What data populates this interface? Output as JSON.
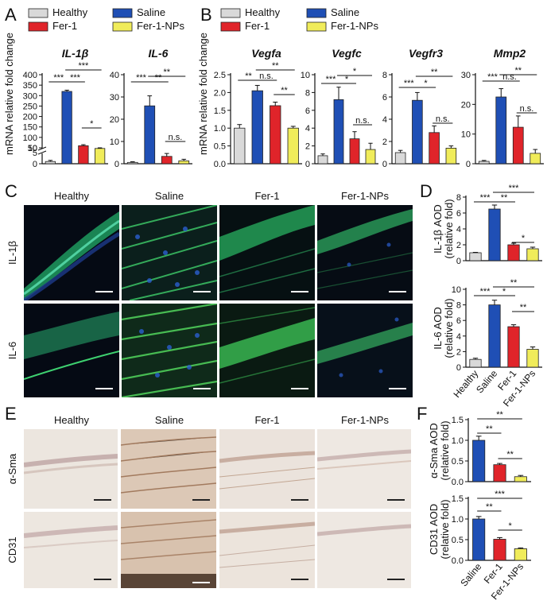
{
  "panel_letters": [
    "A",
    "B",
    "C",
    "D",
    "E",
    "F"
  ],
  "colors": {
    "Healthy": "#d9d9d9",
    "Saline": "#1f4fb5",
    "Fer-1": "#e0242a",
    "Fer-1-NPs": "#f0ec5a"
  },
  "legend": {
    "items": [
      "Healthy",
      "Saline",
      "Fer-1",
      "Fer-1-NPs"
    ]
  },
  "microscopy": {
    "columns": [
      "Healthy",
      "Saline",
      "Fer-1",
      "Fer-1-NPs"
    ],
    "fluorescence_rows": [
      "IL-1β",
      "IL-6"
    ],
    "ihc_rows": [
      "α-Sma",
      "CD31"
    ]
  },
  "chart_data": [
    {
      "id": "A1",
      "type": "bar",
      "title": "IL-1β",
      "ylabel": "mRNA relative fold change",
      "categories": [
        "Healthy",
        "Saline",
        "Fer-1",
        "Fer-1-NPs"
      ],
      "values": [
        1,
        320,
        60,
        47
      ],
      "errors": [
        0.5,
        6,
        5,
        3
      ],
      "y_break": true,
      "ticks": [
        "0",
        "5",
        "10",
        "50",
        "100",
        "150",
        "200",
        "250",
        "300",
        "350",
        "400"
      ],
      "significance": [
        "***",
        "***",
        "***",
        "*"
      ]
    },
    {
      "id": "A2",
      "type": "bar",
      "title": "IL-6",
      "categories": [
        "Healthy",
        "Saline",
        "Fer-1",
        "Fer-1-NPs"
      ],
      "values": [
        0.6,
        26,
        3.3,
        1.3
      ],
      "errors": [
        0.3,
        4.5,
        1.3,
        0.7
      ],
      "ylim": [
        0,
        40
      ],
      "ticks": [
        "0",
        "10",
        "20",
        "30",
        "40"
      ],
      "significance": [
        "***",
        "**",
        "**",
        "n.s."
      ]
    },
    {
      "id": "B1",
      "type": "bar",
      "title": "Vegfa",
      "ylabel": "mRNA relative fold change",
      "categories": [
        "Healthy",
        "Saline",
        "Fer-1",
        "Fer-1-NPs"
      ],
      "values": [
        1.0,
        2.05,
        1.63,
        1.0
      ],
      "errors": [
        0.1,
        0.15,
        0.1,
        0.05
      ],
      "ylim": [
        0,
        2.5
      ],
      "ticks": [
        "0.0",
        "0.5",
        "1.0",
        "1.5",
        "2.0",
        "2.5"
      ],
      "significance": [
        "**",
        "n.s.",
        "**",
        "**"
      ]
    },
    {
      "id": "B2",
      "type": "bar",
      "title": "Vegfc",
      "categories": [
        "Healthy",
        "Saline",
        "Fer-1",
        "Fer-1-NPs"
      ],
      "values": [
        0.9,
        7.2,
        2.8,
        1.6
      ],
      "errors": [
        0.2,
        1.4,
        0.8,
        0.7
      ],
      "ylim": [
        0,
        10
      ],
      "ticks": [
        "0",
        "2",
        "4",
        "6",
        "8",
        "10"
      ],
      "significance": [
        "***",
        "*",
        "*",
        "n.s."
      ]
    },
    {
      "id": "B3",
      "type": "bar",
      "title": "Vegfr3",
      "categories": [
        "Healthy",
        "Saline",
        "Fer-1",
        "Fer-1-NPs"
      ],
      "values": [
        1.0,
        5.7,
        2.8,
        1.4
      ],
      "errors": [
        0.2,
        0.7,
        0.6,
        0.2
      ],
      "ylim": [
        0,
        8
      ],
      "ticks": [
        "0",
        "2",
        "4",
        "6",
        "8"
      ],
      "significance": [
        "***",
        "*",
        "**",
        "n.s."
      ]
    },
    {
      "id": "B4",
      "type": "bar",
      "title": "Mmp2",
      "categories": [
        "Healthy",
        "Saline",
        "Fer-1",
        "Fer-1-NPs"
      ],
      "values": [
        0.8,
        22.5,
        12.3,
        3.5
      ],
      "errors": [
        0.3,
        2.8,
        3.8,
        1.3
      ],
      "ylim": [
        0,
        30
      ],
      "ticks": [
        "0",
        "10",
        "20",
        "30"
      ],
      "significance": [
        "***",
        "n.s.",
        "**",
        "n.s."
      ]
    },
    {
      "id": "D1",
      "type": "bar",
      "ylabel": "IL-1β AOD\n(relative fold)",
      "categories": [
        "Healthy",
        "Saline",
        "Fer-1",
        "Fer-1-NPs"
      ],
      "values": [
        1.0,
        6.5,
        2.0,
        1.5
      ],
      "errors": [
        0.05,
        0.5,
        0.2,
        0.2
      ],
      "ylim": [
        0,
        8
      ],
      "ticks": [
        "0",
        "2",
        "4",
        "6",
        "8"
      ],
      "significance": [
        "***",
        "**",
        "***",
        "*"
      ]
    },
    {
      "id": "D2",
      "type": "bar",
      "ylabel": "IL-6 AOD\n(relative fold)",
      "categories": [
        "Healthy",
        "Saline",
        "Fer-1",
        "Fer-1-NPs"
      ],
      "values": [
        1.0,
        8.0,
        5.2,
        2.3
      ],
      "errors": [
        0.15,
        0.6,
        0.25,
        0.3
      ],
      "ylim": [
        0,
        10
      ],
      "ticks": [
        "0",
        "2",
        "4",
        "6",
        "8",
        "10"
      ],
      "significance": [
        "***",
        "*",
        "**",
        "**"
      ]
    },
    {
      "id": "F1",
      "type": "bar",
      "ylabel": "α-Sma AOD\n(relative fold)",
      "categories": [
        "Saline",
        "Fer-1",
        "Fer-1-NPs"
      ],
      "values": [
        1.0,
        0.41,
        0.12
      ],
      "errors": [
        0.1,
        0.03,
        0.03
      ],
      "ylim": [
        0,
        1.5
      ],
      "ticks": [
        "0.0",
        "0.5",
        "1.0",
        "1.5"
      ],
      "significance": [
        "**",
        "**",
        "**"
      ]
    },
    {
      "id": "F2",
      "type": "bar",
      "ylabel": "CD31 AOD\n(relative fold)",
      "categories": [
        "Saline",
        "Fer-1",
        "Fer-1-NPs"
      ],
      "values": [
        1.0,
        0.51,
        0.28
      ],
      "errors": [
        0.06,
        0.04,
        0.02
      ],
      "ylim": [
        0,
        1.5
      ],
      "ticks": [
        "0.0",
        "0.5",
        "1.0",
        "1.5"
      ],
      "significance": [
        "**",
        "***",
        "*"
      ]
    }
  ]
}
